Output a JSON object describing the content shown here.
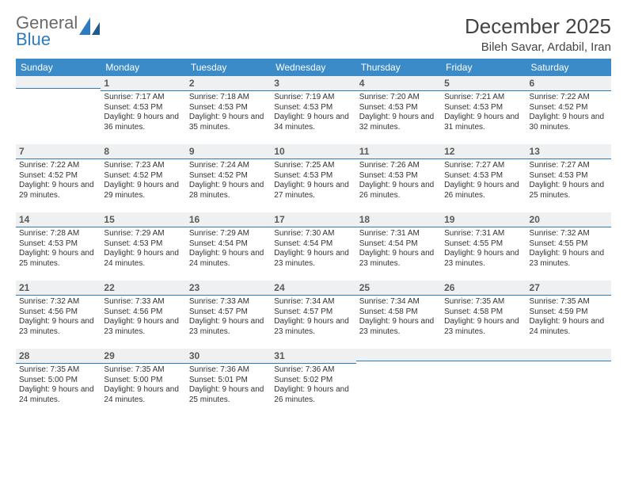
{
  "logo": {
    "general": "General",
    "blue": "Blue"
  },
  "title": "December 2025",
  "location": "Bileh Savar, Ardabil, Iran",
  "dayHeaders": [
    "Sunday",
    "Monday",
    "Tuesday",
    "Wednesday",
    "Thursday",
    "Friday",
    "Saturday"
  ],
  "colors": {
    "headerBg": "#3b8bc9",
    "headerText": "#ffffff",
    "dayNumBg": "#eef0f1",
    "dayNumBorder": "#2f7bbf",
    "bodyText": "#333333",
    "pageBg": "#ffffff"
  },
  "startWeekday": 1,
  "daysInMonth": 31,
  "days": {
    "1": {
      "sunrise": "7:17 AM",
      "sunset": "4:53 PM",
      "daylight": "9 hours and 36 minutes."
    },
    "2": {
      "sunrise": "7:18 AM",
      "sunset": "4:53 PM",
      "daylight": "9 hours and 35 minutes."
    },
    "3": {
      "sunrise": "7:19 AM",
      "sunset": "4:53 PM",
      "daylight": "9 hours and 34 minutes."
    },
    "4": {
      "sunrise": "7:20 AM",
      "sunset": "4:53 PM",
      "daylight": "9 hours and 32 minutes."
    },
    "5": {
      "sunrise": "7:21 AM",
      "sunset": "4:53 PM",
      "daylight": "9 hours and 31 minutes."
    },
    "6": {
      "sunrise": "7:22 AM",
      "sunset": "4:52 PM",
      "daylight": "9 hours and 30 minutes."
    },
    "7": {
      "sunrise": "7:22 AM",
      "sunset": "4:52 PM",
      "daylight": "9 hours and 29 minutes."
    },
    "8": {
      "sunrise": "7:23 AM",
      "sunset": "4:52 PM",
      "daylight": "9 hours and 29 minutes."
    },
    "9": {
      "sunrise": "7:24 AM",
      "sunset": "4:52 PM",
      "daylight": "9 hours and 28 minutes."
    },
    "10": {
      "sunrise": "7:25 AM",
      "sunset": "4:53 PM",
      "daylight": "9 hours and 27 minutes."
    },
    "11": {
      "sunrise": "7:26 AM",
      "sunset": "4:53 PM",
      "daylight": "9 hours and 26 minutes."
    },
    "12": {
      "sunrise": "7:27 AM",
      "sunset": "4:53 PM",
      "daylight": "9 hours and 26 minutes."
    },
    "13": {
      "sunrise": "7:27 AM",
      "sunset": "4:53 PM",
      "daylight": "9 hours and 25 minutes."
    },
    "14": {
      "sunrise": "7:28 AM",
      "sunset": "4:53 PM",
      "daylight": "9 hours and 25 minutes."
    },
    "15": {
      "sunrise": "7:29 AM",
      "sunset": "4:53 PM",
      "daylight": "9 hours and 24 minutes."
    },
    "16": {
      "sunrise": "7:29 AM",
      "sunset": "4:54 PM",
      "daylight": "9 hours and 24 minutes."
    },
    "17": {
      "sunrise": "7:30 AM",
      "sunset": "4:54 PM",
      "daylight": "9 hours and 23 minutes."
    },
    "18": {
      "sunrise": "7:31 AM",
      "sunset": "4:54 PM",
      "daylight": "9 hours and 23 minutes."
    },
    "19": {
      "sunrise": "7:31 AM",
      "sunset": "4:55 PM",
      "daylight": "9 hours and 23 minutes."
    },
    "20": {
      "sunrise": "7:32 AM",
      "sunset": "4:55 PM",
      "daylight": "9 hours and 23 minutes."
    },
    "21": {
      "sunrise": "7:32 AM",
      "sunset": "4:56 PM",
      "daylight": "9 hours and 23 minutes."
    },
    "22": {
      "sunrise": "7:33 AM",
      "sunset": "4:56 PM",
      "daylight": "9 hours and 23 minutes."
    },
    "23": {
      "sunrise": "7:33 AM",
      "sunset": "4:57 PM",
      "daylight": "9 hours and 23 minutes."
    },
    "24": {
      "sunrise": "7:34 AM",
      "sunset": "4:57 PM",
      "daylight": "9 hours and 23 minutes."
    },
    "25": {
      "sunrise": "7:34 AM",
      "sunset": "4:58 PM",
      "daylight": "9 hours and 23 minutes."
    },
    "26": {
      "sunrise": "7:35 AM",
      "sunset": "4:58 PM",
      "daylight": "9 hours and 23 minutes."
    },
    "27": {
      "sunrise": "7:35 AM",
      "sunset": "4:59 PM",
      "daylight": "9 hours and 24 minutes."
    },
    "28": {
      "sunrise": "7:35 AM",
      "sunset": "5:00 PM",
      "daylight": "9 hours and 24 minutes."
    },
    "29": {
      "sunrise": "7:35 AM",
      "sunset": "5:00 PM",
      "daylight": "9 hours and 24 minutes."
    },
    "30": {
      "sunrise": "7:36 AM",
      "sunset": "5:01 PM",
      "daylight": "9 hours and 25 minutes."
    },
    "31": {
      "sunrise": "7:36 AM",
      "sunset": "5:02 PM",
      "daylight": "9 hours and 26 minutes."
    }
  },
  "labels": {
    "sunrise": "Sunrise:",
    "sunset": "Sunset:",
    "daylight": "Daylight:"
  }
}
